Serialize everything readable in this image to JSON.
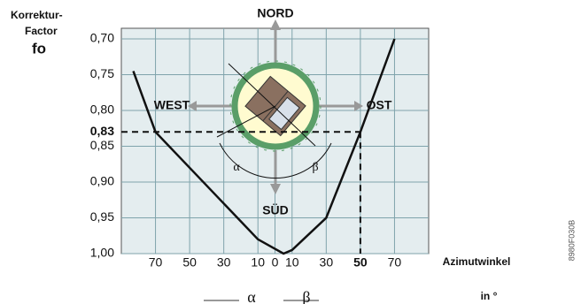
{
  "chart_data": {
    "type": "line",
    "y_label": "Korrektur-",
    "y_label_2": "Factor",
    "y_symbol": "fo",
    "x_label": "Azimutwinkel",
    "x_unit": "in °",
    "annotations": {
      "north": "NORD",
      "west": "WEST",
      "east": "OST",
      "south": "SÜD",
      "alpha": "α",
      "beta": "β"
    },
    "image_code": "8980F030B",
    "x": [
      -83,
      -70,
      -50,
      -30,
      -10,
      5,
      10,
      30,
      50,
      70
    ],
    "series": [
      {
        "name": "fo",
        "color": "#111111",
        "values": [
          0.745,
          0.83,
          0.88,
          0.93,
          0.98,
          1.0,
          0.995,
          0.95,
          0.83,
          0.7
        ]
      }
    ],
    "xlim": [
      -90,
      90
    ],
    "ylim": [
      1.0,
      0.7
    ],
    "xticks": [
      {
        "value": -70,
        "label": "70"
      },
      {
        "value": -50,
        "label": "50"
      },
      {
        "value": -30,
        "label": "30"
      },
      {
        "value": -10,
        "label": "10"
      },
      0,
      10,
      30,
      50,
      70
    ],
    "yticks": [
      {
        "value": 0.7,
        "label": "0,70"
      },
      {
        "value": 0.75,
        "label": "0,75"
      },
      {
        "value": 0.8,
        "label": "0,80"
      },
      {
        "value": 0.85,
        "label": "0,85"
      },
      {
        "value": 0.9,
        "label": "0,90"
      },
      {
        "value": 0.95,
        "label": "0,95"
      },
      {
        "value": 1.0,
        "label": "1,00"
      }
    ],
    "reference": {
      "x": 50,
      "y": 0.83,
      "y_label": "0,83"
    },
    "grid": true
  }
}
